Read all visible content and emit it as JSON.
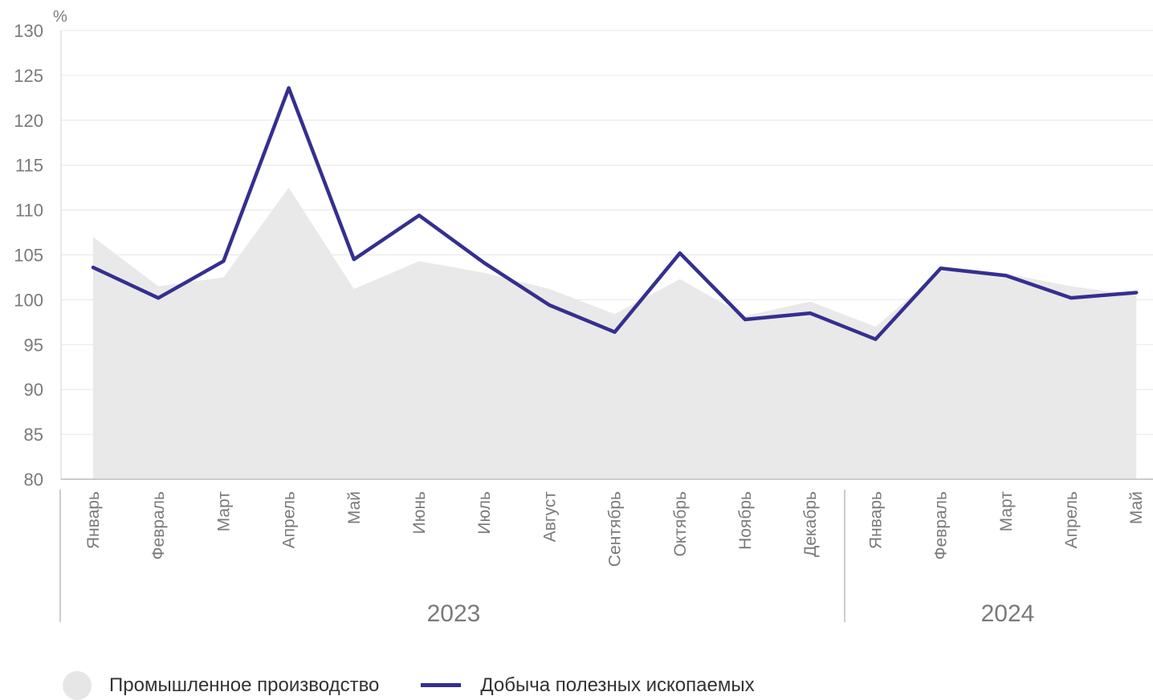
{
  "chart_data": {
    "type": "line",
    "unit_label": "%",
    "ylim": [
      80,
      130
    ],
    "yticks": [
      80,
      85,
      90,
      95,
      100,
      105,
      110,
      115,
      120,
      125,
      130
    ],
    "categories": [
      "Январь",
      "Февраль",
      "Март",
      "Апрель",
      "Май",
      "Июнь",
      "Июль",
      "Август",
      "Сентябрь",
      "Октябрь",
      "Ноябрь",
      "Декабрь",
      "Январь",
      "Февраль",
      "Март",
      "Апрель",
      "Май"
    ],
    "year_groups": [
      {
        "label": "2023",
        "start": 0,
        "end": 11
      },
      {
        "label": "2024",
        "start": 12,
        "end": 16
      }
    ],
    "series": [
      {
        "name": "Промышленное производство",
        "kind": "area",
        "color": "#e9e9e9",
        "values": [
          107.0,
          101.5,
          102.5,
          112.5,
          101.2,
          104.3,
          103.0,
          101.2,
          98.4,
          102.3,
          98.2,
          99.8,
          97.0,
          103.2,
          102.9,
          101.5,
          100.5
        ]
      },
      {
        "name": "Добыча полезных ископаемых",
        "kind": "line",
        "color": "#352f8f",
        "values": [
          103.6,
          100.2,
          104.3,
          123.6,
          104.5,
          109.4,
          104.1,
          99.4,
          96.4,
          105.2,
          97.8,
          98.5,
          95.6,
          103.5,
          102.7,
          100.2,
          100.8
        ]
      }
    ],
    "grid": true,
    "legend_position": "bottom-left"
  }
}
